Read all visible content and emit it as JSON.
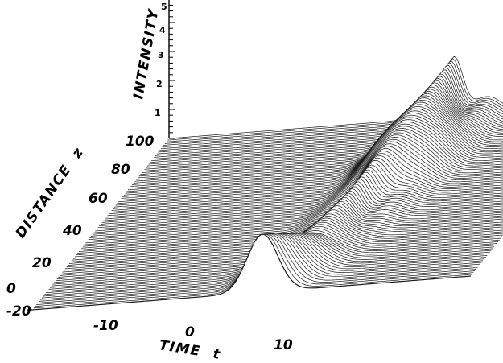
{
  "chart_data": {
    "type": "area",
    "subtype": "3d-waterfall",
    "title": "",
    "xlabel": "TIME",
    "xlabel_symbol": "t",
    "zlabel": "DISTANCE",
    "zlabel_symbol": "z",
    "ylabel": "INTENSITY",
    "x_ticks": [
      "-20",
      "-10",
      "0",
      "10"
    ],
    "x_tick_values": [
      -20,
      -10,
      0,
      10
    ],
    "z_ticks": [
      "0",
      "20",
      "40",
      "60",
      "80",
      "100"
    ],
    "z_tick_values": [
      0,
      20,
      40,
      60,
      80,
      100
    ],
    "y_ticks": [
      "1",
      "2",
      "3",
      "4",
      "5"
    ],
    "y_tick_values": [
      1,
      2,
      3,
      4,
      5
    ],
    "xlim": [
      -20,
      20
    ],
    "zlim": [
      0,
      100
    ],
    "ylim": [
      0,
      5
    ],
    "grid": false,
    "legend": "none",
    "series": [
      {
        "name": "",
        "z": 0,
        "peak_time": 1,
        "peak_intensity": 2.0
      },
      {
        "name": "",
        "z": 20,
        "peak_time": 3,
        "peak_intensity": 0.8
      },
      {
        "name": "",
        "z": 40,
        "peak_time": 4,
        "peak_intensity": 1.0
      },
      {
        "name": "",
        "z": 60,
        "peak_time": 5,
        "peak_intensity": 1.4
      },
      {
        "name": "",
        "z": 80,
        "peak_time": 5.5,
        "peak_intensity": 1.7
      },
      {
        "name": "",
        "z": 100,
        "peak_time": 6,
        "peak_intensity": 2.0
      }
    ]
  }
}
